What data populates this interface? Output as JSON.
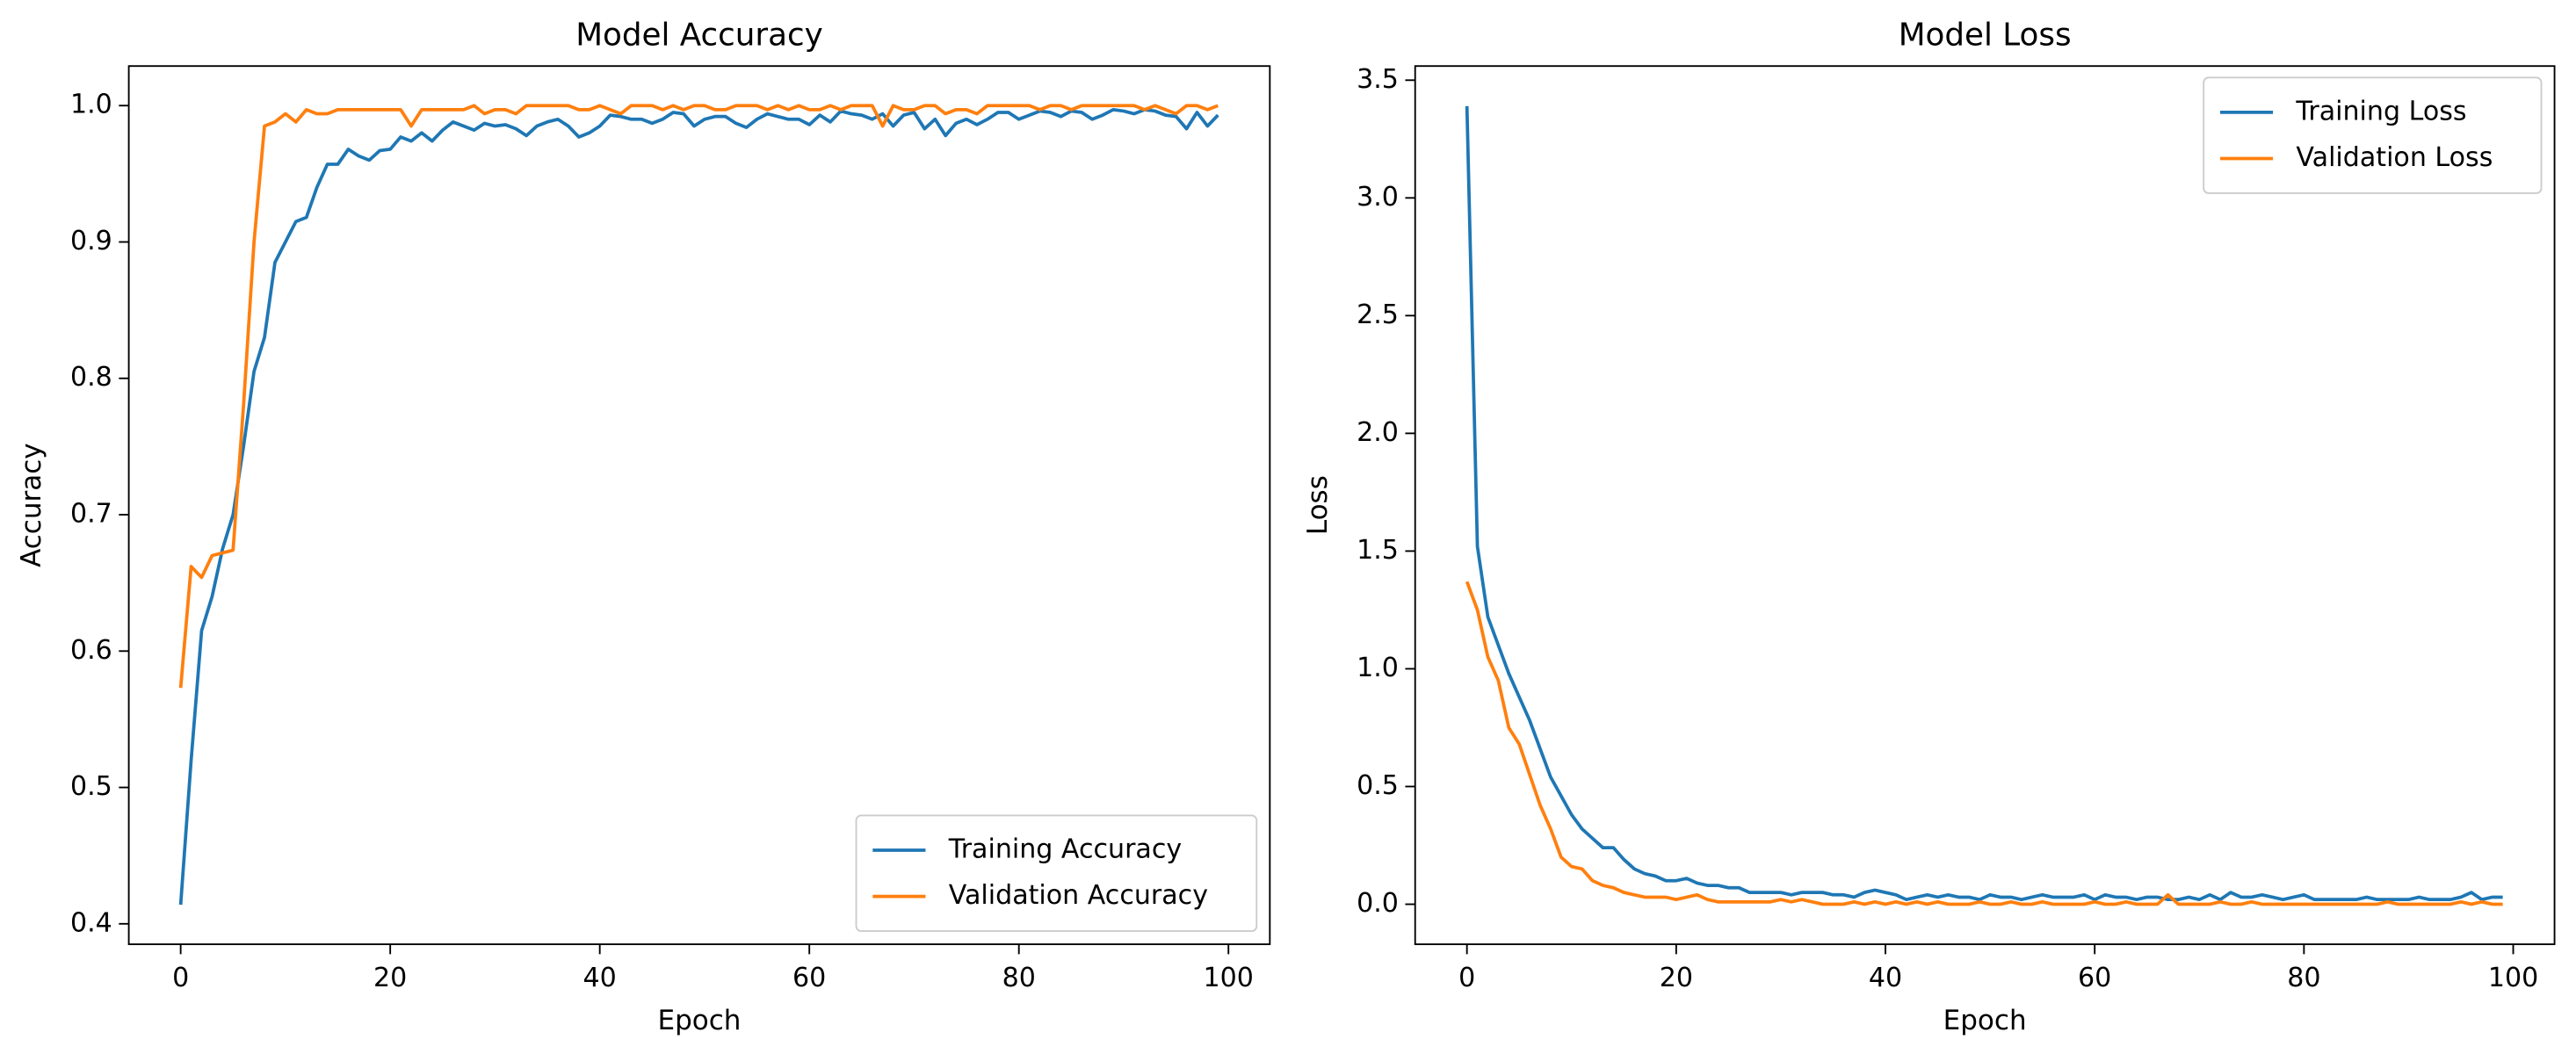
{
  "chart_data": [
    {
      "type": "line",
      "title": "Model Accuracy",
      "x_label": "Epoch",
      "y_label": "Accuracy",
      "x": [
        0,
        1,
        2,
        3,
        4,
        5,
        6,
        7,
        8,
        9,
        10,
        11,
        12,
        13,
        14,
        15,
        16,
        17,
        18,
        19,
        20,
        21,
        22,
        23,
        24,
        25,
        26,
        27,
        28,
        29,
        30,
        31,
        32,
        33,
        34,
        35,
        36,
        37,
        38,
        39,
        40,
        41,
        42,
        43,
        44,
        45,
        46,
        47,
        48,
        49,
        50,
        51,
        52,
        53,
        54,
        55,
        56,
        57,
        58,
        59,
        60,
        61,
        62,
        63,
        64,
        65,
        66,
        67,
        68,
        69,
        70,
        71,
        72,
        73,
        74,
        75,
        76,
        77,
        78,
        79,
        80,
        81,
        82,
        83,
        84,
        85,
        86,
        87,
        88,
        89,
        90,
        91,
        92,
        93,
        94,
        95,
        96,
        97,
        98,
        99
      ],
      "series": [
        {
          "name": "Training Accuracy",
          "color": "#1f77b4",
          "values": [
            0.414,
            0.52,
            0.615,
            0.64,
            0.675,
            0.7,
            0.75,
            0.805,
            0.83,
            0.885,
            0.9,
            0.915,
            0.918,
            0.94,
            0.957,
            0.957,
            0.968,
            0.963,
            0.96,
            0.967,
            0.968,
            0.977,
            0.974,
            0.98,
            0.974,
            0.982,
            0.988,
            0.985,
            0.982,
            0.987,
            0.985,
            0.986,
            0.983,
            0.978,
            0.985,
            0.988,
            0.99,
            0.985,
            0.977,
            0.98,
            0.985,
            0.993,
            0.992,
            0.99,
            0.99,
            0.987,
            0.99,
            0.995,
            0.994,
            0.985,
            0.99,
            0.992,
            0.992,
            0.987,
            0.984,
            0.99,
            0.994,
            0.992,
            0.99,
            0.99,
            0.986,
            0.993,
            0.988,
            0.996,
            0.994,
            0.993,
            0.99,
            0.994,
            0.985,
            0.993,
            0.995,
            0.983,
            0.99,
            0.978,
            0.987,
            0.99,
            0.986,
            0.99,
            0.995,
            0.995,
            0.99,
            0.993,
            0.996,
            0.995,
            0.992,
            0.996,
            0.995,
            0.99,
            0.993,
            0.997,
            0.996,
            0.994,
            0.997,
            0.996,
            0.993,
            0.992,
            0.983,
            0.995,
            0.985,
            0.993
          ]
        },
        {
          "name": "Validation Accuracy",
          "color": "#ff7f0e",
          "values": [
            0.573,
            0.662,
            0.654,
            0.67,
            0.672,
            0.674,
            0.78,
            0.9,
            0.985,
            0.988,
            0.994,
            0.988,
            0.997,
            0.994,
            0.994,
            0.997,
            0.997,
            0.997,
            0.997,
            0.997,
            0.997,
            0.997,
            0.985,
            0.997,
            0.997,
            0.997,
            0.997,
            0.997,
            1.0,
            0.994,
            0.997,
            0.997,
            0.994,
            1.0,
            1.0,
            1.0,
            1.0,
            1.0,
            0.997,
            0.997,
            1.0,
            0.997,
            0.994,
            1.0,
            1.0,
            1.0,
            0.997,
            1.0,
            0.997,
            1.0,
            1.0,
            0.997,
            0.997,
            1.0,
            1.0,
            1.0,
            0.997,
            1.0,
            0.997,
            1.0,
            0.997,
            0.997,
            1.0,
            0.997,
            1.0,
            1.0,
            1.0,
            0.985,
            1.0,
            0.997,
            0.997,
            1.0,
            1.0,
            0.994,
            0.997,
            0.997,
            0.994,
            1.0,
            1.0,
            1.0,
            1.0,
            1.0,
            0.997,
            1.0,
            1.0,
            0.997,
            1.0,
            1.0,
            1.0,
            1.0,
            1.0,
            1.0,
            0.997,
            1.0,
            0.997,
            0.994,
            1.0,
            1.0,
            0.997,
            1.0
          ]
        }
      ],
      "xlim": [
        -4.95,
        103.95
      ],
      "xticks": [
        0,
        20,
        40,
        60,
        80,
        100
      ],
      "ylim": [
        0.385,
        1.029
      ],
      "yticks": [
        0.4,
        0.5,
        0.6,
        0.7,
        0.8,
        0.9,
        {
          "value": 1,
          "label": "1.0"
        }
      ],
      "legend": "lower right"
    },
    {
      "type": "line",
      "title": "Model Loss",
      "x_label": "Epoch",
      "y_label": "Loss",
      "x": [
        0,
        1,
        2,
        3,
        4,
        5,
        6,
        7,
        8,
        9,
        10,
        11,
        12,
        13,
        14,
        15,
        16,
        17,
        18,
        19,
        20,
        21,
        22,
        23,
        24,
        25,
        26,
        27,
        28,
        29,
        30,
        31,
        32,
        33,
        34,
        35,
        36,
        37,
        38,
        39,
        40,
        41,
        42,
        43,
        44,
        45,
        46,
        47,
        48,
        49,
        50,
        51,
        52,
        53,
        54,
        55,
        56,
        57,
        58,
        59,
        60,
        61,
        62,
        63,
        64,
        65,
        66,
        67,
        68,
        69,
        70,
        71,
        72,
        73,
        74,
        75,
        76,
        77,
        78,
        79,
        80,
        81,
        82,
        83,
        84,
        85,
        86,
        87,
        88,
        89,
        90,
        91,
        92,
        93,
        94,
        95,
        96,
        97,
        98,
        99
      ],
      "series": [
        {
          "name": "Training Loss",
          "color": "#1f77b4",
          "values": [
            3.39,
            1.52,
            1.22,
            1.1,
            0.98,
            0.88,
            0.78,
            0.66,
            0.54,
            0.46,
            0.38,
            0.32,
            0.28,
            0.24,
            0.24,
            0.19,
            0.15,
            0.13,
            0.12,
            0.1,
            0.1,
            0.11,
            0.09,
            0.08,
            0.08,
            0.07,
            0.07,
            0.05,
            0.05,
            0.05,
            0.05,
            0.04,
            0.05,
            0.05,
            0.05,
            0.04,
            0.04,
            0.03,
            0.05,
            0.06,
            0.05,
            0.04,
            0.02,
            0.03,
            0.04,
            0.03,
            0.04,
            0.03,
            0.03,
            0.02,
            0.04,
            0.03,
            0.03,
            0.02,
            0.03,
            0.04,
            0.03,
            0.03,
            0.03,
            0.04,
            0.02,
            0.04,
            0.03,
            0.03,
            0.02,
            0.03,
            0.03,
            0.02,
            0.02,
            0.03,
            0.02,
            0.04,
            0.02,
            0.05,
            0.03,
            0.03,
            0.04,
            0.03,
            0.02,
            0.03,
            0.04,
            0.02,
            0.02,
            0.02,
            0.02,
            0.02,
            0.03,
            0.02,
            0.02,
            0.02,
            0.02,
            0.03,
            0.02,
            0.02,
            0.02,
            0.03,
            0.05,
            0.02,
            0.03,
            0.03
          ]
        },
        {
          "name": "Validation Loss",
          "color": "#ff7f0e",
          "values": [
            1.37,
            1.25,
            1.05,
            0.95,
            0.75,
            0.68,
            0.55,
            0.42,
            0.32,
            0.2,
            0.16,
            0.15,
            0.1,
            0.08,
            0.07,
            0.05,
            0.04,
            0.03,
            0.03,
            0.03,
            0.02,
            0.03,
            0.04,
            0.02,
            0.01,
            0.01,
            0.01,
            0.01,
            0.01,
            0.01,
            0.02,
            0.01,
            0.02,
            0.01,
            0.0,
            0.0,
            0.0,
            0.01,
            0.0,
            0.01,
            0.0,
            0.01,
            0.0,
            0.01,
            0.0,
            0.01,
            0.0,
            0.0,
            0.0,
            0.01,
            0.0,
            0.0,
            0.01,
            0.0,
            0.0,
            0.01,
            0.0,
            0.0,
            0.0,
            0.0,
            0.01,
            0.0,
            0.0,
            0.01,
            0.0,
            0.0,
            0.0,
            0.04,
            0.0,
            0.0,
            0.0,
            0.0,
            0.01,
            0.0,
            0.0,
            0.01,
            0.0,
            0.0,
            0.0,
            0.0,
            0.0,
            0.0,
            0.0,
            0.0,
            0.0,
            0.0,
            0.0,
            0.0,
            0.01,
            0.0,
            0.0,
            0.0,
            0.0,
            0.0,
            0.0,
            0.01,
            0.0,
            0.01,
            0.0,
            0.0
          ]
        }
      ],
      "xlim": [
        -4.95,
        103.95
      ],
      "xticks": [
        0,
        20,
        40,
        60,
        80,
        100
      ],
      "ylim": [
        -0.17,
        3.56
      ],
      "yticks": [
        {
          "value": 0,
          "label": "0.0"
        },
        0.5,
        {
          "value": 1,
          "label": "1.0"
        },
        1.5,
        {
          "value": 2,
          "label": "2.0"
        },
        2.5,
        {
          "value": 3,
          "label": "3.0"
        },
        3.5
      ],
      "legend": "upper right"
    }
  ]
}
